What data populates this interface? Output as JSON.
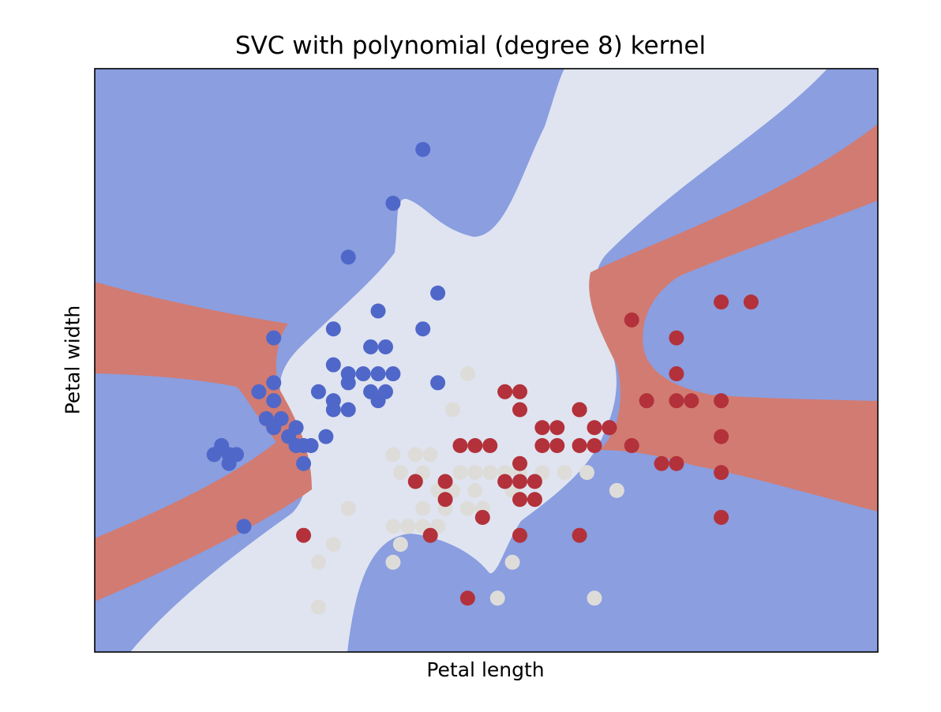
{
  "chart_data": {
    "type": "scatter",
    "title": "SVC with polynomial (degree 8) kernel",
    "xlabel": "Petal length",
    "ylabel": "Petal width",
    "xlim": [
      0.0,
      5.25
    ],
    "ylim": [
      1.0,
      4.25
    ],
    "ticks_visible": false,
    "grid": false,
    "class_colors": [
      "#4f67c9",
      "#dedcd9",
      "#b3313a"
    ],
    "region_colors": [
      "#8a9ee0",
      "#dfe4f0",
      "#d27b72"
    ],
    "series": [
      {
        "class": 0,
        "points": [
          [
            2.2,
            3.8
          ],
          [
            2.0,
            3.5
          ],
          [
            1.7,
            3.2
          ],
          [
            2.3,
            3.0
          ],
          [
            1.9,
            2.9
          ],
          [
            1.6,
            2.8
          ],
          [
            1.85,
            2.7
          ],
          [
            1.95,
            2.7
          ],
          [
            2.2,
            2.8
          ],
          [
            1.2,
            2.75
          ],
          [
            1.6,
            2.6
          ],
          [
            1.7,
            2.55
          ],
          [
            1.8,
            2.55
          ],
          [
            1.9,
            2.55
          ],
          [
            2.0,
            2.55
          ],
          [
            1.85,
            2.45
          ],
          [
            1.2,
            2.5
          ],
          [
            1.7,
            2.5
          ],
          [
            1.9,
            2.4
          ],
          [
            1.1,
            2.45
          ],
          [
            1.2,
            2.4
          ],
          [
            1.95,
            2.45
          ],
          [
            1.5,
            2.45
          ],
          [
            1.6,
            2.4
          ],
          [
            2.3,
            2.5
          ],
          [
            1.6,
            2.35
          ],
          [
            1.7,
            2.35
          ],
          [
            1.15,
            2.3
          ],
          [
            1.25,
            2.3
          ],
          [
            1.2,
            2.25
          ],
          [
            1.35,
            2.25
          ],
          [
            1.3,
            2.2
          ],
          [
            1.35,
            2.15
          ],
          [
            1.4,
            2.15
          ],
          [
            1.45,
            2.15
          ],
          [
            1.4,
            2.05
          ],
          [
            0.85,
            2.15
          ],
          [
            0.9,
            2.1
          ],
          [
            0.9,
            2.05
          ],
          [
            0.8,
            2.1
          ],
          [
            1.0,
            1.7
          ],
          [
            0.95,
            2.1
          ],
          [
            1.55,
            2.2
          ]
        ]
      },
      {
        "class": 1,
        "points": [
          [
            2.5,
            2.55
          ],
          [
            2.4,
            2.35
          ],
          [
            2.0,
            2.1
          ],
          [
            2.15,
            2.1
          ],
          [
            2.25,
            2.1
          ],
          [
            2.45,
            2.0
          ],
          [
            2.55,
            2.0
          ],
          [
            2.65,
            2.0
          ],
          [
            2.75,
            2.0
          ],
          [
            2.85,
            2.0
          ],
          [
            3.0,
            2.0
          ],
          [
            3.15,
            2.0
          ],
          [
            3.3,
            2.0
          ],
          [
            2.05,
            2.0
          ],
          [
            2.2,
            2.0
          ],
          [
            2.3,
            1.9
          ],
          [
            2.4,
            1.9
          ],
          [
            2.55,
            1.9
          ],
          [
            2.8,
            1.9
          ],
          [
            2.2,
            1.8
          ],
          [
            2.35,
            1.8
          ],
          [
            2.5,
            1.8
          ],
          [
            2.6,
            1.8
          ],
          [
            1.7,
            1.8
          ],
          [
            2.0,
            1.7
          ],
          [
            2.1,
            1.7
          ],
          [
            2.2,
            1.7
          ],
          [
            2.3,
            1.7
          ],
          [
            2.05,
            1.6
          ],
          [
            1.6,
            1.6
          ],
          [
            2.0,
            1.5
          ],
          [
            1.5,
            1.5
          ],
          [
            2.8,
            1.5
          ],
          [
            2.7,
            1.3
          ],
          [
            3.35,
            1.3
          ],
          [
            3.5,
            1.9
          ],
          [
            1.5,
            1.25
          ]
        ]
      },
      {
        "class": 2,
        "points": [
          [
            2.75,
            2.45
          ],
          [
            2.85,
            2.45
          ],
          [
            2.85,
            2.35
          ],
          [
            3.0,
            2.25
          ],
          [
            3.1,
            2.25
          ],
          [
            3.25,
            2.35
          ],
          [
            3.35,
            2.25
          ],
          [
            3.45,
            2.25
          ],
          [
            3.0,
            2.15
          ],
          [
            2.45,
            2.15
          ],
          [
            2.55,
            2.15
          ],
          [
            2.65,
            2.15
          ],
          [
            3.1,
            2.15
          ],
          [
            3.25,
            2.15
          ],
          [
            3.35,
            2.15
          ],
          [
            3.45,
            2.25
          ],
          [
            2.85,
            2.05
          ],
          [
            2.15,
            1.95
          ],
          [
            2.35,
            1.95
          ],
          [
            2.75,
            1.95
          ],
          [
            2.85,
            1.95
          ],
          [
            2.95,
            1.95
          ],
          [
            2.35,
            1.85
          ],
          [
            2.85,
            1.85
          ],
          [
            2.95,
            1.85
          ],
          [
            2.6,
            1.75
          ],
          [
            2.85,
            1.65
          ],
          [
            3.25,
            1.65
          ],
          [
            1.4,
            1.65
          ],
          [
            2.5,
            1.3
          ],
          [
            2.25,
            1.65
          ],
          [
            3.6,
            2.85
          ],
          [
            3.7,
            2.4
          ],
          [
            3.9,
            2.4
          ],
          [
            4.0,
            2.4
          ],
          [
            4.2,
            2.4
          ],
          [
            4.2,
            2.2
          ],
          [
            4.2,
            2.0
          ],
          [
            3.8,
            2.05
          ],
          [
            3.9,
            2.05
          ],
          [
            3.6,
            2.15
          ],
          [
            3.9,
            2.75
          ],
          [
            4.2,
            2.95
          ],
          [
            4.4,
            2.95
          ],
          [
            3.9,
            2.55
          ],
          [
            4.2,
            1.75
          ],
          [
            3.25,
            2.35
          ]
        ]
      }
    ]
  }
}
